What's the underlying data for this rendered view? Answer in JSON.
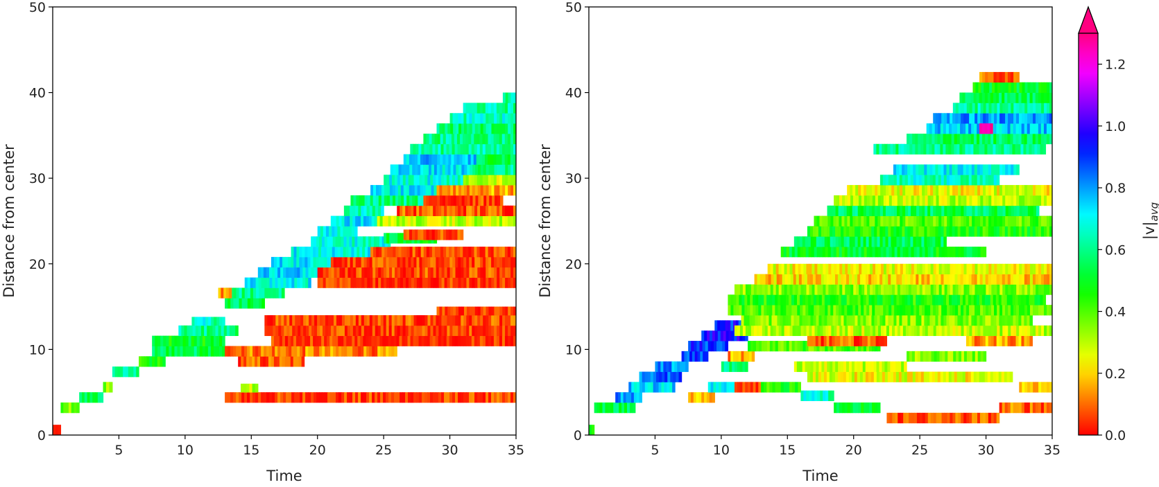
{
  "chart_data": [
    {
      "type": "heatmap",
      "panel": "left",
      "title": "",
      "xlabel": "Time",
      "ylabel": "Distance from center",
      "xlim": [
        0,
        35
      ],
      "ylim": [
        0,
        50
      ],
      "xticks": [
        5,
        10,
        15,
        20,
        25,
        30,
        35
      ],
      "yticks": [
        0,
        10,
        20,
        30,
        40,
        50
      ],
      "grid": false,
      "bands": [
        {
          "t0": 0.0,
          "t1": 0.6,
          "y0": 0.0,
          "y1": 1.2,
          "v": 0.0
        },
        {
          "t0": 0.6,
          "t1": 2.0,
          "y0": 2.6,
          "y1": 3.8,
          "v": 0.35
        },
        {
          "t0": 2.0,
          "t1": 3.8,
          "y0": 3.8,
          "y1": 5.0,
          "v": 0.55
        },
        {
          "t0": 3.8,
          "t1": 4.5,
          "y0": 5.0,
          "y1": 6.2,
          "v": 0.35
        },
        {
          "t0": 4.5,
          "t1": 6.5,
          "y0": 6.8,
          "y1": 8.0,
          "v": 0.6
        },
        {
          "t0": 6.5,
          "t1": 8.5,
          "y0": 8.0,
          "y1": 9.2,
          "v": 0.45
        },
        {
          "t0": 7.5,
          "t1": 13.0,
          "y0": 9.2,
          "y1": 10.4,
          "v": 0.55
        },
        {
          "t0": 7.5,
          "t1": 13.0,
          "y0": 10.4,
          "y1": 11.6,
          "v": 0.5
        },
        {
          "t0": 9.5,
          "t1": 14.0,
          "y0": 11.6,
          "y1": 12.8,
          "v": 0.6
        },
        {
          "t0": 10.5,
          "t1": 13.0,
          "y0": 12.8,
          "y1": 13.8,
          "v": 0.65
        },
        {
          "t0": 13.0,
          "t1": 35.0,
          "y0": 3.8,
          "y1": 5.0,
          "v": 0.05
        },
        {
          "t0": 14.2,
          "t1": 15.5,
          "y0": 5.0,
          "y1": 6.0,
          "v": 0.3
        },
        {
          "t0": 14.0,
          "t1": 19.0,
          "y0": 8.0,
          "y1": 9.2,
          "v": 0.08
        },
        {
          "t0": 13.0,
          "t1": 26.0,
          "y0": 9.2,
          "y1": 10.4,
          "v": 0.12
        },
        {
          "t0": 16.5,
          "t1": 35.0,
          "y0": 10.4,
          "y1": 11.6,
          "v": 0.03
        },
        {
          "t0": 16.0,
          "t1": 35.0,
          "y0": 11.6,
          "y1": 12.8,
          "v": 0.05
        },
        {
          "t0": 16.0,
          "t1": 35.0,
          "y0": 12.8,
          "y1": 14.0,
          "v": 0.06
        },
        {
          "t0": 29.0,
          "t1": 35.0,
          "y0": 14.0,
          "y1": 15.0,
          "v": 0.03
        },
        {
          "t0": 13.0,
          "t1": 16.0,
          "y0": 14.8,
          "y1": 16.0,
          "v": 0.55
        },
        {
          "t0": 13.0,
          "t1": 17.5,
          "y0": 16.0,
          "y1": 17.2,
          "v": 0.6
        },
        {
          "t0": 12.5,
          "t1": 13.5,
          "y0": 16.0,
          "y1": 17.2,
          "v": 0.12
        },
        {
          "t0": 14.5,
          "t1": 19.5,
          "y0": 17.2,
          "y1": 18.4,
          "v": 0.7
        },
        {
          "t0": 20.0,
          "t1": 35.0,
          "y0": 17.2,
          "y1": 18.4,
          "v": 0.04
        },
        {
          "t0": 15.5,
          "t1": 21.0,
          "y0": 18.4,
          "y1": 19.6,
          "v": 0.75
        },
        {
          "t0": 20.0,
          "t1": 35.0,
          "y0": 18.4,
          "y1": 19.6,
          "v": 0.06
        },
        {
          "t0": 16.5,
          "t1": 22.0,
          "y0": 19.6,
          "y1": 20.8,
          "v": 0.72
        },
        {
          "t0": 21.0,
          "t1": 35.0,
          "y0": 19.6,
          "y1": 20.8,
          "v": 0.05
        },
        {
          "t0": 18.0,
          "t1": 24.0,
          "y0": 20.8,
          "y1": 22.0,
          "v": 0.7
        },
        {
          "t0": 24.0,
          "t1": 35.0,
          "y0": 20.8,
          "y1": 22.0,
          "v": 0.06
        },
        {
          "t0": 19.5,
          "t1": 25.5,
          "y0": 22.0,
          "y1": 23.2,
          "v": 0.68
        },
        {
          "t0": 20.0,
          "t1": 23.0,
          "y0": 23.2,
          "y1": 24.4,
          "v": 0.7
        },
        {
          "t0": 25.0,
          "t1": 29.0,
          "y0": 22.4,
          "y1": 23.6,
          "v": 0.5
        },
        {
          "t0": 26.5,
          "t1": 31.0,
          "y0": 22.8,
          "y1": 24.0,
          "v": 0.05
        },
        {
          "t0": 21.0,
          "t1": 24.5,
          "y0": 24.4,
          "y1": 25.6,
          "v": 0.72
        },
        {
          "t0": 24.5,
          "t1": 35.0,
          "y0": 24.4,
          "y1": 25.6,
          "v": 0.3
        },
        {
          "t0": 22.0,
          "t1": 25.0,
          "y0": 25.6,
          "y1": 26.8,
          "v": 0.65
        },
        {
          "t0": 26.0,
          "t1": 35.0,
          "y0": 25.6,
          "y1": 26.8,
          "v": 0.08
        },
        {
          "t0": 22.5,
          "t1": 28.0,
          "y0": 26.8,
          "y1": 28.0,
          "v": 0.6
        },
        {
          "t0": 28.0,
          "t1": 34.0,
          "y0": 26.8,
          "y1": 28.0,
          "v": 0.05
        },
        {
          "t0": 24.0,
          "t1": 29.0,
          "y0": 28.0,
          "y1": 29.2,
          "v": 0.7
        },
        {
          "t0": 29.0,
          "t1": 35.0,
          "y0": 28.0,
          "y1": 29.2,
          "v": 0.15
        },
        {
          "t0": 25.0,
          "t1": 31.0,
          "y0": 29.2,
          "y1": 30.4,
          "v": 0.68
        },
        {
          "t0": 31.0,
          "t1": 35.0,
          "y0": 29.2,
          "y1": 30.4,
          "v": 0.3
        },
        {
          "t0": 25.5,
          "t1": 31.5,
          "y0": 30.4,
          "y1": 31.6,
          "v": 0.72
        },
        {
          "t0": 31.5,
          "t1": 35.0,
          "y0": 30.4,
          "y1": 31.6,
          "v": 0.6
        },
        {
          "t0": 26.5,
          "t1": 32.0,
          "y0": 31.6,
          "y1": 32.8,
          "v": 0.75
        },
        {
          "t0": 32.0,
          "t1": 35.0,
          "y0": 31.6,
          "y1": 32.8,
          "v": 0.55
        },
        {
          "t0": 27.0,
          "t1": 35.0,
          "y0": 32.8,
          "y1": 34.0,
          "v": 0.62
        },
        {
          "t0": 28.0,
          "t1": 35.0,
          "y0": 34.0,
          "y1": 35.2,
          "v": 0.6
        },
        {
          "t0": 29.0,
          "t1": 35.0,
          "y0": 35.2,
          "y1": 36.4,
          "v": 0.58
        },
        {
          "t0": 30.0,
          "t1": 35.0,
          "y0": 36.4,
          "y1": 37.6,
          "v": 0.65
        },
        {
          "t0": 31.0,
          "t1": 35.0,
          "y0": 37.6,
          "y1": 38.8,
          "v": 0.62
        },
        {
          "t0": 34.0,
          "t1": 35.0,
          "y0": 38.8,
          "y1": 40.0,
          "v": 0.6
        }
      ]
    },
    {
      "type": "heatmap",
      "panel": "right",
      "title": "",
      "xlabel": "Time",
      "ylabel": "Distance from center",
      "xlim": [
        0,
        35
      ],
      "ylim": [
        0,
        50
      ],
      "xticks": [
        5,
        10,
        15,
        20,
        25,
        30,
        35
      ],
      "yticks": [
        0,
        10,
        20,
        30,
        40,
        50
      ],
      "grid": false,
      "colorbar": {
        "label": "|v|avg",
        "label_main": "|v|",
        "label_sub": "avg",
        "vmin": 0.0,
        "vmax": 1.3,
        "extend": "max",
        "ticks": [
          0.0,
          0.2,
          0.4,
          0.6,
          0.8,
          1.0,
          1.2
        ],
        "tick_labels": [
          "0.0",
          "0.2",
          "0.4",
          "0.6",
          "0.8",
          "1.0",
          "1.2"
        ],
        "colormap": "gist_rainbow (red at 0, magenta above max)"
      },
      "bands": [
        {
          "t0": 0.0,
          "t1": 0.4,
          "y0": 0.0,
          "y1": 1.2,
          "v": 0.5
        },
        {
          "t0": 0.4,
          "t1": 3.5,
          "y0": 2.6,
          "y1": 3.8,
          "v": 0.55
        },
        {
          "t0": 2.0,
          "t1": 4.0,
          "y0": 3.8,
          "y1": 5.0,
          "v": 0.8
        },
        {
          "t0": 3.0,
          "t1": 6.5,
          "y0": 5.0,
          "y1": 6.2,
          "v": 0.75
        },
        {
          "t0": 3.8,
          "t1": 7.0,
          "y0": 6.2,
          "y1": 7.4,
          "v": 0.85
        },
        {
          "t0": 5.0,
          "t1": 7.5,
          "y0": 7.4,
          "y1": 8.6,
          "v": 0.8
        },
        {
          "t0": 7.0,
          "t1": 9.0,
          "y0": 8.6,
          "y1": 9.8,
          "v": 0.88
        },
        {
          "t0": 7.5,
          "t1": 10.5,
          "y0": 9.8,
          "y1": 11.0,
          "v": 0.9
        },
        {
          "t0": 8.5,
          "t1": 12.0,
          "y0": 11.0,
          "y1": 12.2,
          "v": 0.95
        },
        {
          "t0": 9.5,
          "t1": 11.5,
          "y0": 12.2,
          "y1": 13.4,
          "v": 0.92
        },
        {
          "t0": 7.5,
          "t1": 9.5,
          "y0": 3.8,
          "y1": 5.0,
          "v": 0.2
        },
        {
          "t0": 9.0,
          "t1": 11.0,
          "y0": 5.0,
          "y1": 6.2,
          "v": 0.7
        },
        {
          "t0": 11.0,
          "t1": 13.0,
          "y0": 5.0,
          "y1": 6.2,
          "v": 0.1
        },
        {
          "t0": 13.0,
          "t1": 16.0,
          "y0": 5.0,
          "y1": 6.2,
          "v": 0.45
        },
        {
          "t0": 16.0,
          "t1": 18.5,
          "y0": 4.0,
          "y1": 5.2,
          "v": 0.65
        },
        {
          "t0": 18.5,
          "t1": 22.0,
          "y0": 2.6,
          "y1": 3.8,
          "v": 0.5
        },
        {
          "t0": 22.5,
          "t1": 31.0,
          "y0": 1.4,
          "y1": 2.6,
          "v": 0.08
        },
        {
          "t0": 31.0,
          "t1": 35.0,
          "y0": 2.6,
          "y1": 3.8,
          "v": 0.1
        },
        {
          "t0": 32.5,
          "t1": 35.0,
          "y0": 5.0,
          "y1": 6.2,
          "v": 0.2
        },
        {
          "t0": 10.0,
          "t1": 12.0,
          "y0": 7.4,
          "y1": 8.6,
          "v": 0.6
        },
        {
          "t0": 16.5,
          "t1": 32.0,
          "y0": 6.2,
          "y1": 7.4,
          "v": 0.25
        },
        {
          "t0": 15.5,
          "t1": 24.0,
          "y0": 7.4,
          "y1": 8.6,
          "v": 0.3
        },
        {
          "t0": 24.0,
          "t1": 30.0,
          "y0": 8.6,
          "y1": 9.8,
          "v": 0.35
        },
        {
          "t0": 10.5,
          "t1": 12.5,
          "y0": 8.6,
          "y1": 9.8,
          "v": 0.15
        },
        {
          "t0": 12.0,
          "t1": 22.0,
          "y0": 9.8,
          "y1": 11.0,
          "v": 0.4
        },
        {
          "t0": 16.5,
          "t1": 22.5,
          "y0": 10.4,
          "y1": 11.6,
          "v": 0.08
        },
        {
          "t0": 28.5,
          "t1": 33.5,
          "y0": 10.4,
          "y1": 11.6,
          "v": 0.15
        },
        {
          "t0": 11.0,
          "t1": 35.0,
          "y0": 11.6,
          "y1": 12.8,
          "v": 0.3
        },
        {
          "t0": 11.5,
          "t1": 33.5,
          "y0": 12.8,
          "y1": 14.0,
          "v": 0.35
        },
        {
          "t0": 10.5,
          "t1": 35.0,
          "y0": 14.0,
          "y1": 15.2,
          "v": 0.4
        },
        {
          "t0": 10.5,
          "t1": 34.5,
          "y0": 15.2,
          "y1": 16.4,
          "v": 0.45
        },
        {
          "t0": 11.0,
          "t1": 35.0,
          "y0": 16.4,
          "y1": 17.6,
          "v": 0.35
        },
        {
          "t0": 12.5,
          "t1": 35.0,
          "y0": 17.6,
          "y1": 18.8,
          "v": 0.2
        },
        {
          "t0": 13.5,
          "t1": 35.0,
          "y0": 18.8,
          "y1": 20.0,
          "v": 0.25
        },
        {
          "t0": 14.5,
          "t1": 30.0,
          "y0": 20.8,
          "y1": 22.0,
          "v": 0.5
        },
        {
          "t0": 15.5,
          "t1": 27.0,
          "y0": 22.0,
          "y1": 23.2,
          "v": 0.55
        },
        {
          "t0": 16.5,
          "t1": 35.0,
          "y0": 23.2,
          "y1": 24.4,
          "v": 0.45
        },
        {
          "t0": 17.0,
          "t1": 35.0,
          "y0": 24.4,
          "y1": 25.6,
          "v": 0.4
        },
        {
          "t0": 18.0,
          "t1": 34.0,
          "y0": 25.6,
          "y1": 26.8,
          "v": 0.55
        },
        {
          "t0": 18.5,
          "t1": 35.0,
          "y0": 26.8,
          "y1": 28.0,
          "v": 0.3
        },
        {
          "t0": 19.5,
          "t1": 35.0,
          "y0": 28.0,
          "y1": 29.2,
          "v": 0.25
        },
        {
          "t0": 22.0,
          "t1": 31.0,
          "y0": 29.2,
          "y1": 30.4,
          "v": 0.65
        },
        {
          "t0": 23.0,
          "t1": 32.5,
          "y0": 30.4,
          "y1": 31.6,
          "v": 0.7
        },
        {
          "t0": 21.5,
          "t1": 34.5,
          "y0": 32.8,
          "y1": 34.0,
          "v": 0.6
        },
        {
          "t0": 24.0,
          "t1": 35.0,
          "y0": 34.0,
          "y1": 35.2,
          "v": 0.55
        },
        {
          "t0": 25.5,
          "t1": 35.0,
          "y0": 35.2,
          "y1": 36.4,
          "v": 0.75
        },
        {
          "t0": 26.0,
          "t1": 35.0,
          "y0": 36.4,
          "y1": 37.6,
          "v": 0.8
        },
        {
          "t0": 27.5,
          "t1": 35.0,
          "y0": 37.6,
          "y1": 38.8,
          "v": 0.62
        },
        {
          "t0": 28.0,
          "t1": 35.0,
          "y0": 38.8,
          "y1": 40.0,
          "v": 0.55
        },
        {
          "t0": 29.0,
          "t1": 35.0,
          "y0": 40.0,
          "y1": 41.2,
          "v": 0.5
        },
        {
          "t0": 29.5,
          "t1": 32.5,
          "y0": 41.2,
          "y1": 42.4,
          "v": 0.1
        },
        {
          "t0": 29.5,
          "t1": 30.5,
          "y0": 35.2,
          "y1": 36.4,
          "v": 1.3
        }
      ]
    }
  ]
}
